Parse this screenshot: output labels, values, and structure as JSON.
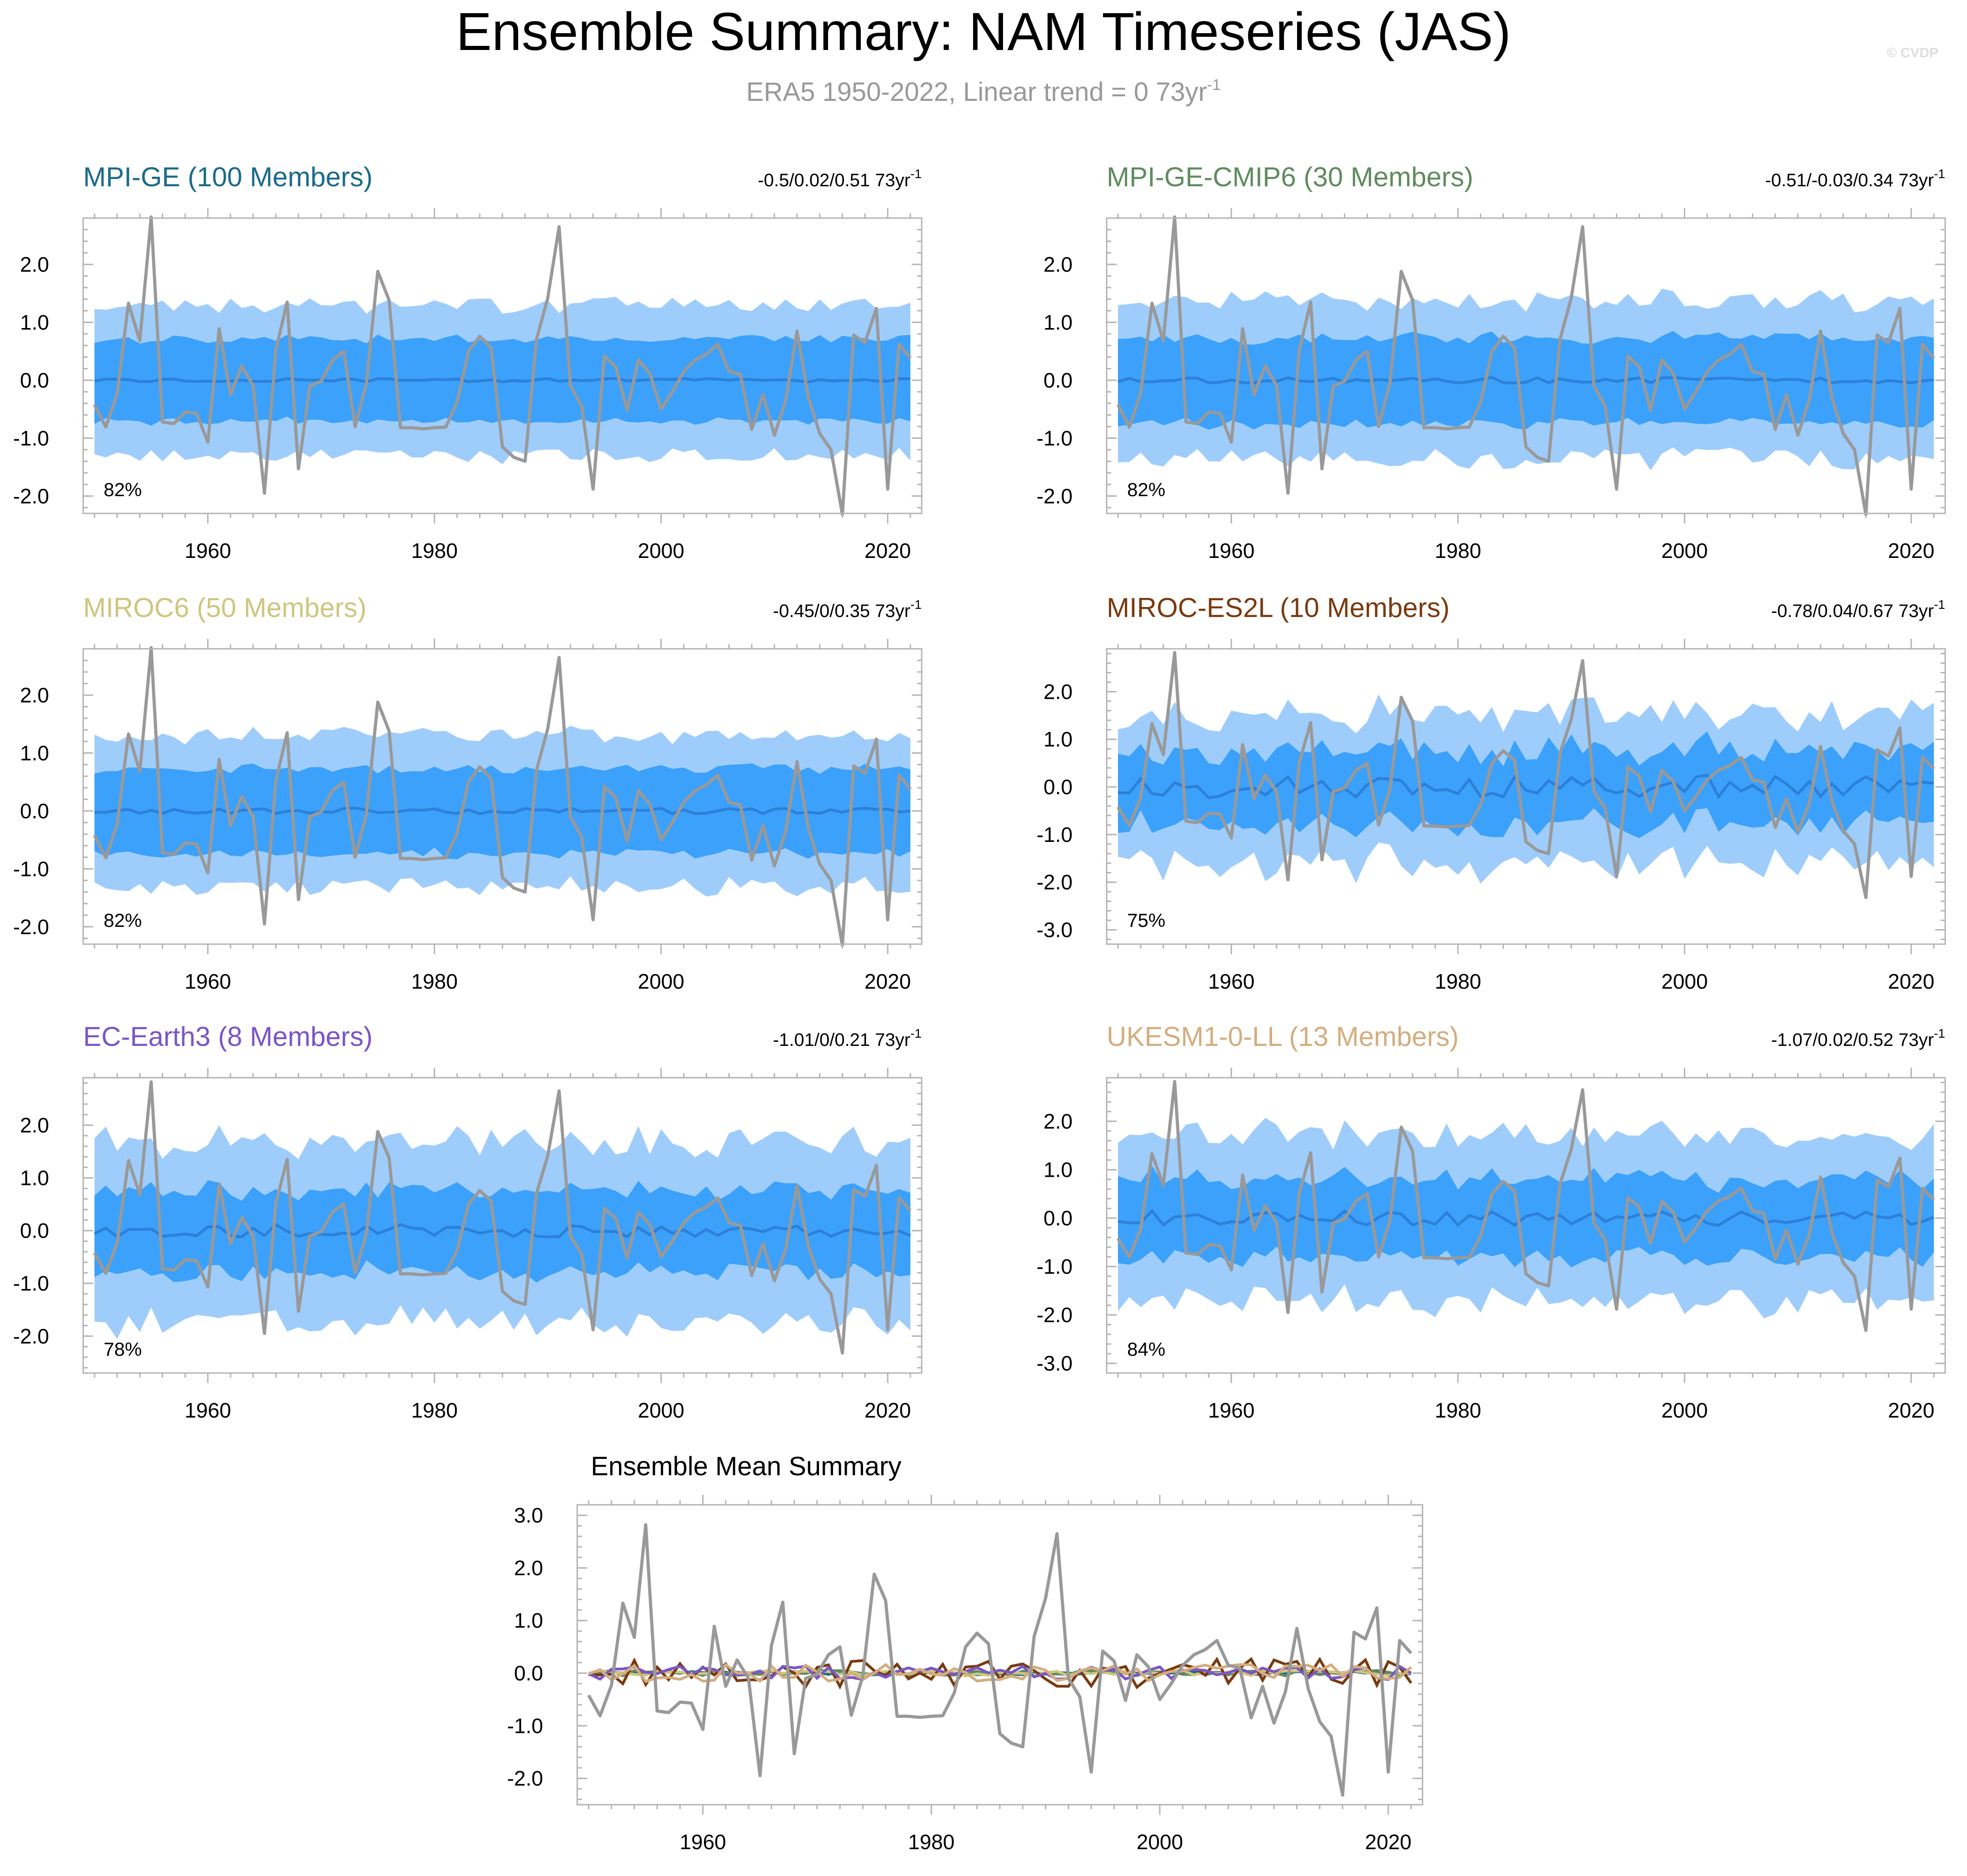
{
  "title": "Ensemble Summary: NAM Timeseries (JAS)",
  "subtitle": "ERA5 1950-2022, Linear trend = 0 73yr",
  "subtitle_sup": "-1",
  "credit": "© CVDP",
  "colors": {
    "outer_band": "#9fcdfb",
    "inner_band": "#3ba1fa",
    "ens_mean": "#2d7fd8",
    "obs": "#999999",
    "frame": "#b3b3b3"
  },
  "x_ticks": [
    "1960",
    "1980",
    "2000",
    "2020"
  ],
  "obs": {
    "name": "ERA5",
    "years": [
      1950,
      2022
    ],
    "values": [
      -0.42,
      -0.81,
      -0.23,
      1.33,
      0.68,
      2.82,
      -0.72,
      -0.75,
      -0.55,
      -0.57,
      -1.07,
      0.89,
      -0.25,
      0.25,
      -0.1,
      -1.95,
      0.52,
      1.35,
      -1.53,
      -0.1,
      -0.02,
      0.35,
      0.5,
      -0.8,
      -0.05,
      1.88,
      1.38,
      -0.82,
      -0.82,
      -0.84,
      -0.82,
      -0.81,
      -0.38,
      0.5,
      0.76,
      0.56,
      -1.15,
      -1.33,
      -1.4,
      0.7,
      1.42,
      2.65,
      -0.1,
      -0.45,
      -1.88,
      0.42,
      0.23,
      -0.52,
      0.35,
      0.12,
      -0.5,
      -0.2,
      0.15,
      0.35,
      0.45,
      0.62,
      0.15,
      0.1,
      -0.85,
      -0.25,
      -0.95,
      -0.35,
      0.85,
      -0.3,
      -0.92,
      -1.2,
      -2.32,
      0.78,
      0.65,
      1.24,
      -1.88,
      0.62,
      0.38
    ]
  },
  "panels": [
    {
      "name": "MPI-GE",
      "title": "MPI-GE (100 Members)",
      "title_color": "#1a6b8a",
      "range_text": "-0.5/0.02/0.51 73yr",
      "range_sup": "-1",
      "pct": "82%",
      "ylim": [
        -2.3,
        2.8
      ],
      "yticks": [
        "2.0",
        "1.0",
        "0.0",
        "-1.0",
        "-2.0"
      ],
      "outer": 1.25,
      "inner": 0.7,
      "meanAmp": 0.03,
      "outerJit": 0.25,
      "innerJit": 0.12,
      "seed": 11
    },
    {
      "name": "MPI-GE-CMIP6",
      "title": "MPI-GE-CMIP6 (30 Members)",
      "title_color": "#5f8b5f",
      "range_text": "-0.51/-0.03/0.34 73yr",
      "range_sup": "-1",
      "pct": "82%",
      "ylim": [
        -2.3,
        2.8
      ],
      "yticks": [
        "2.0",
        "1.0",
        "0.0",
        "-1.0",
        "-2.0"
      ],
      "outer": 1.3,
      "inner": 0.72,
      "meanAmp": 0.05,
      "outerJit": 0.35,
      "innerJit": 0.16,
      "seed": 23
    },
    {
      "name": "MIROC6",
      "title": "MIROC6 (50 Members)",
      "title_color": "#cfc67e",
      "range_text": "-0.45/0/0.35 73yr",
      "range_sup": "-1",
      "pct": "82%",
      "ylim": [
        -2.3,
        2.8
      ],
      "yticks": [
        "2.0",
        "1.0",
        "0.0",
        "-1.0",
        "-2.0"
      ],
      "outer": 1.25,
      "inner": 0.72,
      "meanAmp": 0.05,
      "outerJit": 0.28,
      "innerJit": 0.14,
      "seed": 37
    },
    {
      "name": "MIROC-ES2L",
      "title": "MIROC-ES2L (10 Members)",
      "title_color": "#7a3a0e",
      "range_text": "-0.78/0.04/0.67 73yr",
      "range_sup": "-1",
      "pct": "75%",
      "ylim": [
        -3.3,
        2.9
      ],
      "yticks": [
        "2.0",
        "1.0",
        "0.0",
        "-1.0",
        "-2.0",
        "-3.0"
      ],
      "outer": 1.45,
      "inner": 0.75,
      "meanAmp": 0.25,
      "outerJit": 0.55,
      "innerJit": 0.3,
      "seed": 53
    },
    {
      "name": "EC-Earth3",
      "title": "EC-Earth3 (8 Members)",
      "title_color": "#7b55c7",
      "range_text": "-1.01/0/0.21 73yr",
      "range_sup": "-1",
      "pct": "78%",
      "ylim": [
        -2.7,
        2.9
      ],
      "yticks": [
        "2.0",
        "1.0",
        "0.0",
        "-1.0",
        "-2.0"
      ],
      "outer": 1.6,
      "inner": 0.75,
      "meanAmp": 0.12,
      "outerJit": 0.5,
      "innerJit": 0.25,
      "seed": 71
    },
    {
      "name": "UKESM1-0-LL",
      "title": "UKESM1-0-LL (13 Members)",
      "title_color": "#d4ad7e",
      "range_text": "-1.07/0.02/0.52 73yr",
      "range_sup": "-1",
      "pct": "84%",
      "ylim": [
        -3.2,
        2.9
      ],
      "yticks": [
        "2.0",
        "1.0",
        "0.0",
        "-1.0",
        "-2.0",
        "-3.0"
      ],
      "outer": 1.6,
      "inner": 0.78,
      "meanAmp": 0.15,
      "outerJit": 0.55,
      "innerJit": 0.28,
      "seed": 89
    }
  ],
  "summary": {
    "title": "Ensemble Mean Summary",
    "ylim": [
      -2.5,
      3.2
    ],
    "yticks": [
      "3.0",
      "2.0",
      "1.0",
      "0.0",
      "-1.0",
      "-2.0"
    ],
    "line_colors": [
      "#1a6b8a",
      "#5f8b5f",
      "#cfc67e",
      "#7a3a0e",
      "#7b55c7",
      "#d4ad7e"
    ]
  }
}
